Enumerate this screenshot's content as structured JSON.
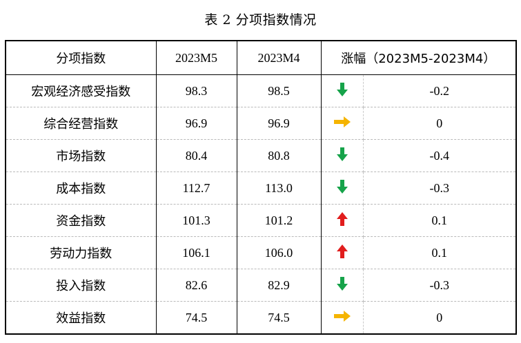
{
  "title": "表 2  分项指数情况",
  "header": {
    "col_name": "分项指数",
    "col_m5": "2023M5",
    "col_m4": "2023M4",
    "col_change": "涨幅（2023M5-2023M4）"
  },
  "colors": {
    "down": "#16a34a",
    "up": "#e11d1d",
    "flat": "#f5b400"
  },
  "rows": [
    {
      "name": "宏观经济感受指数",
      "m5": "98.3",
      "m4": "98.5",
      "trend": "down-arrow-icon",
      "change": "-0.2"
    },
    {
      "name": "综合经营指数",
      "m5": "96.9",
      "m4": "96.9",
      "trend": "right-arrow-icon",
      "change": "0"
    },
    {
      "name": "市场指数",
      "m5": "80.4",
      "m4": "80.8",
      "trend": "down-arrow-icon",
      "change": "-0.4"
    },
    {
      "name": "成本指数",
      "m5": "112.7",
      "m4": "113.0",
      "trend": "down-arrow-icon",
      "change": "-0.3"
    },
    {
      "name": "资金指数",
      "m5": "101.3",
      "m4": "101.2",
      "trend": "up-arrow-icon",
      "change": "0.1"
    },
    {
      "name": "劳动力指数",
      "m5": "106.1",
      "m4": "106.0",
      "trend": "up-arrow-icon",
      "change": "0.1"
    },
    {
      "name": "投入指数",
      "m5": "82.6",
      "m4": "82.9",
      "trend": "down-arrow-icon",
      "change": "-0.3"
    },
    {
      "name": "效益指数",
      "m5": "74.5",
      "m4": "74.5",
      "trend": "right-arrow-icon",
      "change": "0"
    }
  ]
}
